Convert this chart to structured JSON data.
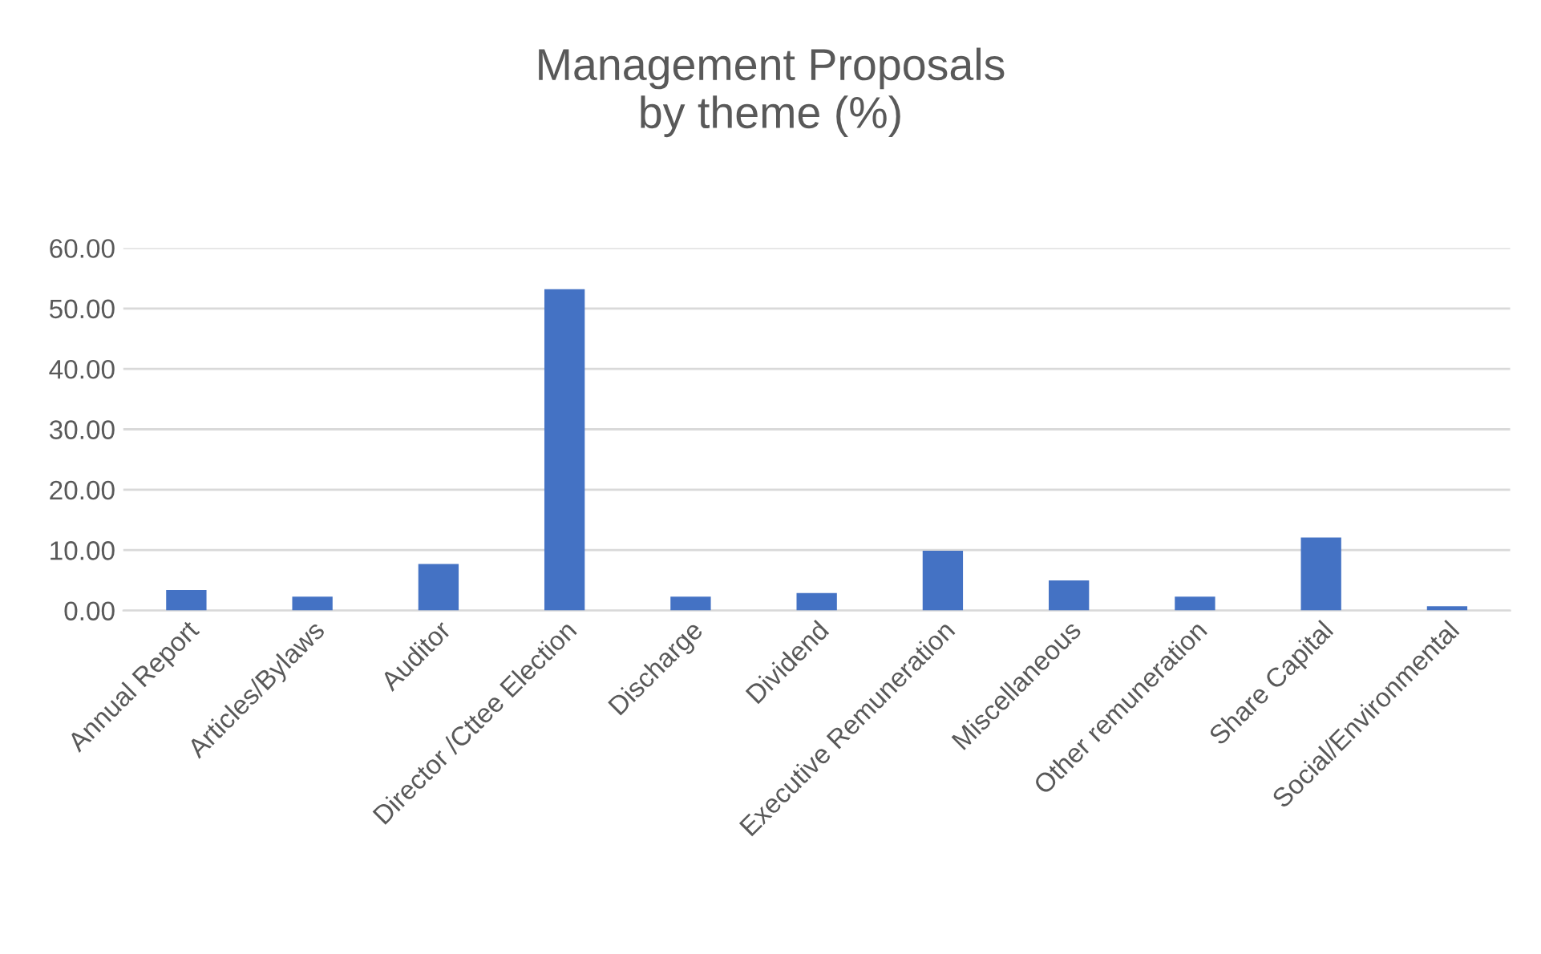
{
  "chart_data": {
    "type": "bar",
    "title": "Management Proposals\nby theme (%)",
    "categories": [
      "Annual Report",
      "Articles/Bylaws",
      "Auditor",
      "Director /Cttee Election",
      "Discharge",
      "Dividend",
      "Executive Remuneration",
      "Miscellaneous",
      "Other remuneration",
      "Share Capital",
      "Social/Environmental"
    ],
    "values": [
      3.4,
      2.3,
      7.7,
      53.2,
      2.3,
      2.9,
      9.9,
      5.0,
      2.3,
      12.1,
      0.7
    ],
    "color": "#4472c4",
    "ylim": [
      0,
      60
    ],
    "yticks": [
      {
        "value": 0,
        "label": "0.00"
      },
      {
        "value": 10,
        "label": "10.00"
      },
      {
        "value": 20,
        "label": "20.00"
      },
      {
        "value": 30,
        "label": "30.00"
      },
      {
        "value": 40,
        "label": "40.00"
      },
      {
        "value": 50,
        "label": "50.00"
      },
      {
        "value": 60,
        "label": "60.00"
      }
    ],
    "grid": "y"
  }
}
